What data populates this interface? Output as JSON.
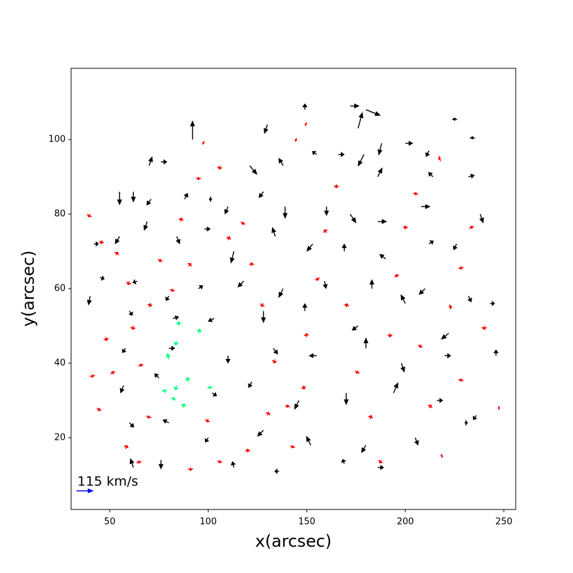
{
  "chart_data": {
    "type": "quiver",
    "xlabel": "x(arcsec)",
    "ylabel": "y(arcsec)",
    "xlim": [
      30.4,
      256
    ],
    "ylim": [
      0.74,
      119.1
    ],
    "xticks": [
      50,
      100,
      150,
      200,
      250
    ],
    "yticks": [
      20,
      40,
      60,
      80,
      100
    ],
    "key": {
      "label": "115 km/s",
      "value": 115,
      "color": "#0000ff"
    },
    "series": [
      {
        "color": "#000000",
        "arrows": [
          [
            92,
            100,
            0,
            130
          ],
          [
            55,
            86,
            0,
            -90
          ],
          [
            70,
            93,
            20,
            60
          ],
          [
            76,
            94,
            40,
            0
          ],
          [
            130,
            104,
            -20,
            -60
          ],
          [
            149,
            108,
            0,
            40
          ],
          [
            172,
            109,
            60,
            0
          ],
          [
            180,
            108,
            100,
            -40
          ],
          [
            176,
            103,
            30,
            110
          ],
          [
            188,
            99,
            -20,
            -80
          ],
          [
            200,
            99,
            50,
            0
          ],
          [
            212,
            97,
            -20,
            -40
          ],
          [
            225,
            105,
            0,
            20
          ],
          [
            234,
            100,
            0,
            20
          ],
          [
            121,
            93,
            50,
            -60
          ],
          [
            138,
            93,
            -30,
            50
          ],
          [
            155,
            96,
            -30,
            20
          ],
          [
            166,
            96,
            40,
            0
          ],
          [
            179,
            96,
            -40,
            -80
          ],
          [
            186,
            90,
            30,
            60
          ],
          [
            214,
            90,
            -30,
            30
          ],
          [
            232,
            90,
            40,
            10
          ],
          [
            62,
            86,
            0,
            -70
          ],
          [
            71,
            84,
            -30,
            -40
          ],
          [
            88,
            84,
            20,
            40
          ],
          [
            102,
            84,
            -20,
            0
          ],
          [
            110,
            82,
            -20,
            -50
          ],
          [
            128,
            86,
            -30,
            -40
          ],
          [
            139,
            82,
            0,
            -80
          ],
          [
            160,
            82,
            0,
            -60
          ],
          [
            172,
            80,
            40,
            -60
          ],
          [
            186,
            78,
            60,
            0
          ],
          [
            208,
            82,
            60,
            0
          ],
          [
            238,
            80,
            20,
            -60
          ],
          [
            42,
            72,
            30,
            0
          ],
          [
            55,
            74,
            -30,
            -50
          ],
          [
            69,
            78,
            -20,
            -60
          ],
          [
            84,
            74,
            20,
            -50
          ],
          [
            98,
            76,
            40,
            0
          ],
          [
            113,
            70,
            -20,
            -80
          ],
          [
            134,
            74,
            -20,
            60
          ],
          [
            153,
            72,
            -40,
            -50
          ],
          [
            169,
            70,
            0,
            50
          ],
          [
            190,
            68,
            -40,
            30
          ],
          [
            212,
            72,
            30,
            20
          ],
          [
            226,
            72,
            -20,
            -40
          ],
          [
            45,
            63,
            30,
            -10
          ],
          [
            64,
            62,
            -30,
            -10
          ],
          [
            80,
            58,
            -20,
            -30
          ],
          [
            95,
            60,
            30,
            20
          ],
          [
            118,
            62,
            -40,
            -40
          ],
          [
            138,
            60,
            -30,
            -60
          ],
          [
            159,
            62,
            10,
            -50
          ],
          [
            183,
            60,
            0,
            60
          ],
          [
            210,
            60,
            -40,
            -40
          ],
          [
            232,
            58,
            20,
            -40
          ],
          [
            40,
            58,
            -10,
            -60
          ],
          [
            60,
            54,
            20,
            -30
          ],
          [
            82,
            52,
            40,
            10
          ],
          [
            103,
            52,
            -40,
            -20
          ],
          [
            128,
            54,
            0,
            -80
          ],
          [
            149,
            54,
            0,
            50
          ],
          [
            176,
            50,
            -40,
            -30
          ],
          [
            200,
            56,
            -30,
            60
          ],
          [
            222,
            48,
            -50,
            -40
          ],
          [
            243,
            56,
            30,
            0
          ],
          [
            58,
            44,
            -20,
            -30
          ],
          [
            80,
            44,
            40,
            0
          ],
          [
            110,
            42,
            0,
            -50
          ],
          [
            133,
            44,
            30,
            -40
          ],
          [
            155,
            42,
            -50,
            0
          ],
          [
            180,
            44,
            0,
            70
          ],
          [
            198,
            40,
            20,
            -60
          ],
          [
            220,
            42,
            40,
            0
          ],
          [
            246,
            42,
            0,
            40
          ],
          [
            57,
            34,
            -20,
            -50
          ],
          [
            75,
            36,
            -30,
            30
          ],
          [
            102,
            32,
            30,
            -20
          ],
          [
            122,
            35,
            -20,
            -40
          ],
          [
            146,
            30,
            -30,
            -60
          ],
          [
            170,
            32,
            0,
            -80
          ],
          [
            194,
            32,
            30,
            70
          ],
          [
            216,
            30,
            40,
            0
          ],
          [
            236,
            26,
            -20,
            -30
          ],
          [
            60,
            24,
            30,
            -30
          ],
          [
            80,
            24,
            -40,
            20
          ],
          [
            100,
            20,
            -20,
            -30
          ],
          [
            128,
            22,
            -40,
            -40
          ],
          [
            152,
            18,
            -30,
            60
          ],
          [
            180,
            18,
            -30,
            -50
          ],
          [
            205,
            20,
            20,
            -50
          ],
          [
            230,
            24,
            20,
            0
          ],
          [
            62,
            12,
            -20,
            60
          ],
          [
            76,
            14,
            0,
            -60
          ],
          [
            113,
            12,
            -10,
            40
          ],
          [
            136,
            11,
            -30,
            0
          ],
          [
            169,
            13,
            -10,
            30
          ],
          [
            186,
            12,
            40,
            0
          ]
        ]
      },
      {
        "color": "#ff0000",
        "arrows": [
          [
            40,
            80,
            -10,
            -20
          ],
          [
            46,
            73,
            -5,
            -25
          ],
          [
            53,
            69,
            15,
            20
          ],
          [
            60,
            62,
            -10,
            -25
          ],
          [
            62,
            50,
            -5,
            -25
          ],
          [
            66,
            39,
            -5,
            20
          ],
          [
            41,
            37,
            5,
            -20
          ],
          [
            45,
            28,
            -10,
            -20
          ],
          [
            58,
            17,
            10,
            25
          ],
          [
            65,
            13,
            -5,
            20
          ],
          [
            70,
            55,
            10,
            25
          ],
          [
            76,
            68,
            -10,
            -20
          ],
          [
            82,
            60,
            -5,
            -20
          ],
          [
            86,
            78,
            5,
            25
          ],
          [
            90,
            66,
            15,
            20
          ],
          [
            95,
            90,
            0,
            -20
          ],
          [
            98,
            99,
            -10,
            5
          ],
          [
            106,
            93,
            -5,
            -25
          ],
          [
            110,
            73,
            10,
            25
          ],
          [
            118,
            78,
            -10,
            -20
          ],
          [
            122,
            66,
            0,
            25
          ],
          [
            128,
            56,
            -15,
            -20
          ],
          [
            134,
            41,
            -10,
            -25
          ],
          [
            140,
            28,
            5,
            20
          ],
          [
            143,
            18,
            -5,
            -20
          ],
          [
            148,
            34,
            10,
            -25
          ],
          [
            150,
            47,
            -5,
            25
          ],
          [
            155,
            63,
            10,
            -20
          ],
          [
            160,
            75,
            -15,
            20
          ],
          [
            165,
            88,
            0,
            -25
          ],
          [
            170,
            55,
            5,
            25
          ],
          [
            176,
            38,
            -10,
            -20
          ],
          [
            182,
            25,
            10,
            25
          ],
          [
            188,
            14,
            -15,
            -20
          ],
          [
            192,
            48,
            5,
            -25
          ],
          [
            196,
            63,
            -10,
            20
          ],
          [
            200,
            77,
            0,
            -25
          ],
          [
            205,
            85,
            5,
            20
          ],
          [
            208,
            45,
            -10,
            -20
          ],
          [
            212,
            28,
            15,
            20
          ],
          [
            218,
            15,
            10,
            5
          ],
          [
            222,
            55,
            20,
            5
          ],
          [
            228,
            66,
            5,
            -20
          ],
          [
            234,
            76,
            -10,
            20
          ],
          [
            240,
            50,
            0,
            -25
          ],
          [
            247,
            28,
            10,
            0
          ],
          [
            228,
            35,
            5,
            20
          ],
          [
            218,
            95,
            -15,
            -5
          ],
          [
            144,
            100,
            10,
            -5
          ],
          [
            150,
            104,
            -10,
            5
          ],
          [
            100,
            25,
            -10,
            -20
          ],
          [
            106,
            14,
            -5,
            -20
          ],
          [
            120,
            16,
            0,
            25
          ],
          [
            130,
            26,
            10,
            20
          ],
          [
            91,
            12,
            0,
            -20
          ],
          [
            52,
            37,
            -10,
            20
          ],
          [
            48,
            47,
            5,
            -25
          ],
          [
            70,
            26,
            -5,
            -20
          ]
        ]
      },
      {
        "color": "#00ff7f",
        "arrows": [
          [
            85,
            50,
            0,
            30
          ],
          [
            84,
            46,
            -10,
            -30
          ],
          [
            80,
            41,
            -10,
            40
          ],
          [
            84,
            34,
            -10,
            -30
          ],
          [
            78,
            32,
            -5,
            25
          ],
          [
            82,
            30,
            10,
            20
          ],
          [
            90,
            35,
            -10,
            30
          ],
          [
            95,
            48,
            10,
            30
          ],
          [
            101,
            33,
            -5,
            20
          ],
          [
            87,
            28,
            10,
            30
          ]
        ]
      }
    ]
  }
}
